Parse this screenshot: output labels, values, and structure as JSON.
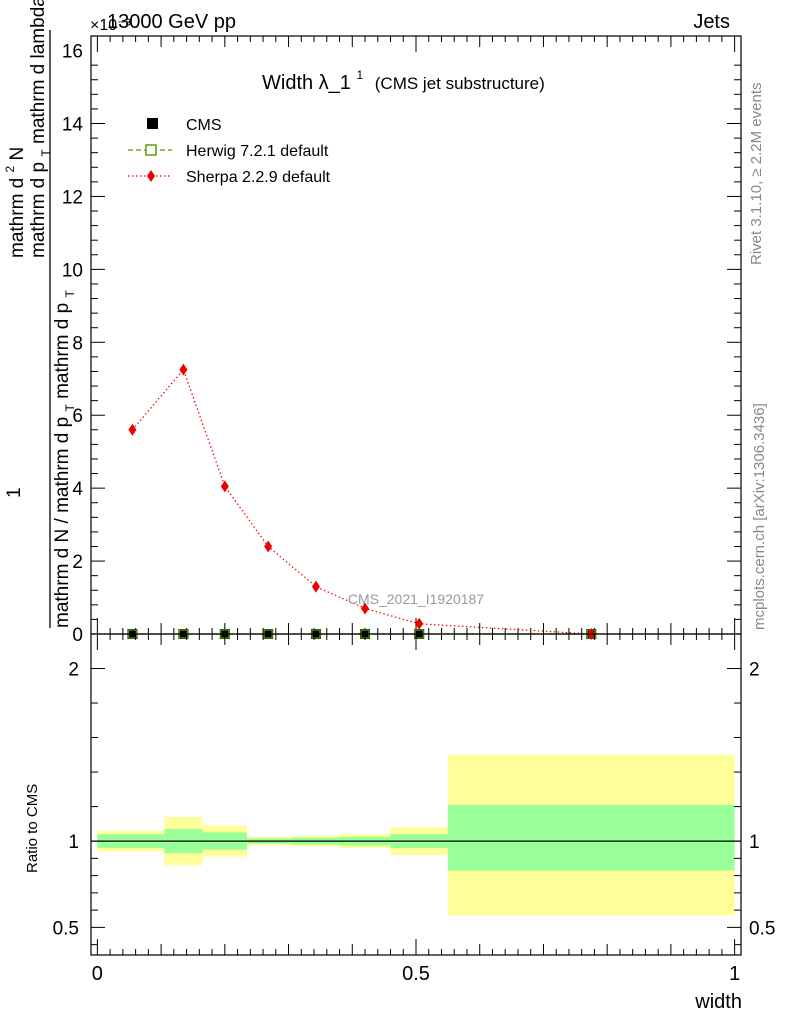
{
  "header": {
    "left": "13000 GeV pp",
    "right": "Jets",
    "exponent": "×10⁻³"
  },
  "side_labels": {
    "rivet": "Rivet 3.1.10, ≥ 2.2M events",
    "mcplots": "mcplots.cern.ch [arXiv:1306.3436]"
  },
  "watermark": "CMS_2021_I1920187",
  "chart_data": [
    {
      "type": "line",
      "title": "Width λ_1",
      "title_sup": "1",
      "subtitle": "(CMS jet substructure)",
      "ylabel_top": "mathrm d²N",
      "ylabel_top_text": "mathrm d",
      "ylabel_top_sup": "2",
      "ylabel_top_end": "N",
      "ylabel_top_2": "mathrm d p",
      "ylabel_top_2_sub": "T",
      "ylabel_top_2_end": " mathrm d lambda",
      "ylabel_prefix": "1",
      "ylabel_bottom": "mathrm d N / mathrm d p",
      "ylabel_bottom_sub": "T",
      "ylabel_bottom_end": " mathrm d p",
      "ylabel_bottom_sub2": "T",
      "ylabel_bottom_end2": "",
      "ylim": [
        0,
        16.4
      ],
      "yticks": [
        0,
        2,
        4,
        6,
        8,
        10,
        12,
        14,
        16
      ],
      "ytick_labels": [
        "0",
        "2",
        "4",
        "6",
        "8",
        "10",
        "12",
        "14",
        "16"
      ],
      "legend_placement": "top-left",
      "legend": [
        {
          "name": "CMS",
          "marker": "square-filled",
          "color": "#000000"
        },
        {
          "name": "Herwig 7.2.1 default",
          "marker": "square-open",
          "color": "#4d9a00"
        },
        {
          "name": "Sherpa 2.2.9 default",
          "marker": "diamond",
          "color": "#ee0000"
        }
      ],
      "series": [
        {
          "name": "CMS",
          "x": [
            0.055,
            0.135,
            0.2,
            0.268,
            0.343,
            0.42,
            0.505,
            0.775
          ],
          "y": [
            0.0,
            0.0,
            0.0,
            0.0,
            0.0,
            0.0,
            0.0,
            0.0
          ]
        },
        {
          "name": "Herwig 7.2.1 default",
          "x": [
            0.055,
            0.135,
            0.2,
            0.268,
            0.343,
            0.42,
            0.505,
            0.775
          ],
          "y": [
            0.0,
            0.0,
            0.0,
            0.0,
            0.0,
            0.0,
            0.0,
            0.0
          ]
        },
        {
          "name": "Sherpa 2.2.9 default",
          "x": [
            0.055,
            0.135,
            0.2,
            0.268,
            0.343,
            0.42,
            0.505,
            0.775
          ],
          "y": [
            5.6,
            7.25,
            4.05,
            2.4,
            1.3,
            0.7,
            0.28,
            0.0
          ]
        }
      ]
    },
    {
      "type": "area",
      "ylabel": "Ratio to CMS",
      "xlabel": "width",
      "xlim": [
        -0.01,
        1.01
      ],
      "ylim": [
        0.34,
        2.2
      ],
      "xticks": [
        0,
        0.5,
        1
      ],
      "xtick_labels": [
        "0",
        "0.5",
        "1"
      ],
      "yticks": [
        0.5,
        1,
        2
      ],
      "ytick_labels": [
        "0.5",
        "1",
        "2"
      ],
      "reference_line": 1,
      "bins": [
        {
          "lo": 0.0,
          "hi": 0.105,
          "green": [
            0.96,
            1.04
          ],
          "yellow": [
            0.94,
            1.06
          ]
        },
        {
          "lo": 0.105,
          "hi": 0.165,
          "green": [
            0.93,
            1.07
          ],
          "yellow": [
            0.86,
            1.14
          ]
        },
        {
          "lo": 0.165,
          "hi": 0.235,
          "green": [
            0.95,
            1.05
          ],
          "yellow": [
            0.91,
            1.09
          ]
        },
        {
          "lo": 0.235,
          "hi": 0.305,
          "green": [
            0.985,
            1.015
          ],
          "yellow": [
            0.975,
            1.025
          ]
        },
        {
          "lo": 0.305,
          "hi": 0.38,
          "green": [
            0.98,
            1.02
          ],
          "yellow": [
            0.97,
            1.03
          ]
        },
        {
          "lo": 0.38,
          "hi": 0.46,
          "green": [
            0.975,
            1.025
          ],
          "yellow": [
            0.96,
            1.04
          ]
        },
        {
          "lo": 0.46,
          "hi": 0.55,
          "green": [
            0.96,
            1.04
          ],
          "yellow": [
            0.92,
            1.08
          ]
        },
        {
          "lo": 0.55,
          "hi": 1.0,
          "green": [
            0.83,
            1.21
          ],
          "yellow": [
            0.57,
            1.5
          ]
        }
      ]
    }
  ]
}
